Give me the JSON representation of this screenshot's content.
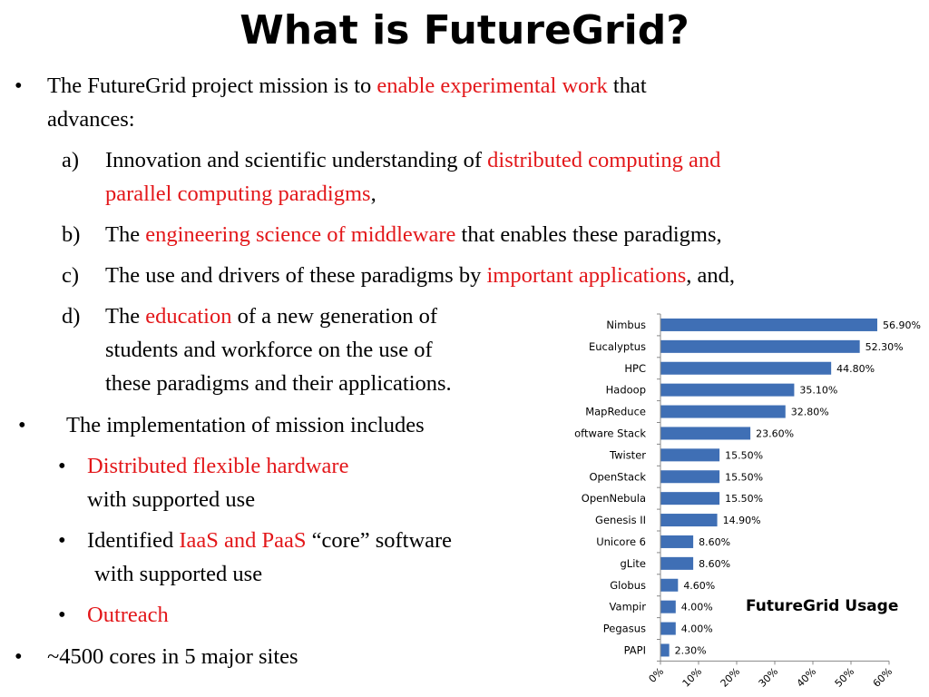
{
  "slide": {
    "title": "What is FutureGrid?",
    "bullet_marker": "•",
    "mission": {
      "pre": "The FutureGrid project mission is to ",
      "highlight": "enable experimental work",
      "post": " that",
      "cont": "advances:"
    },
    "items": {
      "a": {
        "marker": "a)",
        "pre": "Innovation and scientific understanding of ",
        "highlight1": "distributed computing and",
        "highlight2": "parallel computing paradigms",
        "post": ","
      },
      "b": {
        "marker": "b)",
        "pre": "The ",
        "highlight": "engineering science of middleware",
        "post": " that enables these paradigms,"
      },
      "c": {
        "marker": "c)",
        "pre": "The use and drivers of these paradigms by ",
        "highlight": "important applications",
        "post": ", and,"
      },
      "d": {
        "marker": "d)",
        "pre": "The ",
        "highlight": "education",
        "post": " of a new generation of",
        "line2": "students and workforce on the use of",
        "line3": "these paradigms and their applications."
      }
    },
    "implementation": {
      "text": "The implementation of mission includes",
      "sub1": {
        "highlight": "Distributed flexible hardware",
        "cont": "with supported use"
      },
      "sub2": {
        "pre": "Identified ",
        "highlight": "IaaS and PaaS",
        "post": " “core” software",
        "cont": "with supported use"
      },
      "sub3": {
        "highlight": "Outreach"
      }
    },
    "cores": "~4500 cores in 5 major sites",
    "colors": {
      "highlight": "#e3171a",
      "bar": "#3f6fb5"
    }
  },
  "chart_data": {
    "type": "bar",
    "orientation": "horizontal",
    "title": "FutureGrid Usage",
    "categories": [
      "Nimbus",
      "Eucalyptus",
      "HPC",
      "Hadoop",
      "MapReduce",
      "oftware Stack",
      "Twister",
      "OpenStack",
      "OpenNebula",
      "Genesis II",
      "Unicore 6",
      "gLite",
      "Globus",
      "Vampir",
      "Pegasus",
      "PAPI"
    ],
    "values": [
      56.9,
      52.3,
      44.8,
      35.1,
      32.8,
      23.6,
      15.5,
      15.5,
      15.5,
      14.9,
      8.6,
      8.6,
      4.6,
      4.0,
      4.0,
      2.3
    ],
    "value_labels": [
      "56.90%",
      "52.30%",
      "44.80%",
      "35.10%",
      "32.80%",
      "23.60%",
      "15.50%",
      "15.50%",
      "15.50%",
      "14.90%",
      "8.60%",
      "8.60%",
      "4.60%",
      "4.00%",
      "4.00%",
      "2.30%"
    ],
    "xlim": [
      0,
      60
    ],
    "x_ticks": [
      0,
      10,
      20,
      30,
      40,
      50,
      60
    ],
    "x_tick_labels": [
      "0%",
      "10%",
      "20%",
      "30%",
      "40%",
      "50%",
      "60%"
    ],
    "grid": false,
    "legend": "none"
  }
}
